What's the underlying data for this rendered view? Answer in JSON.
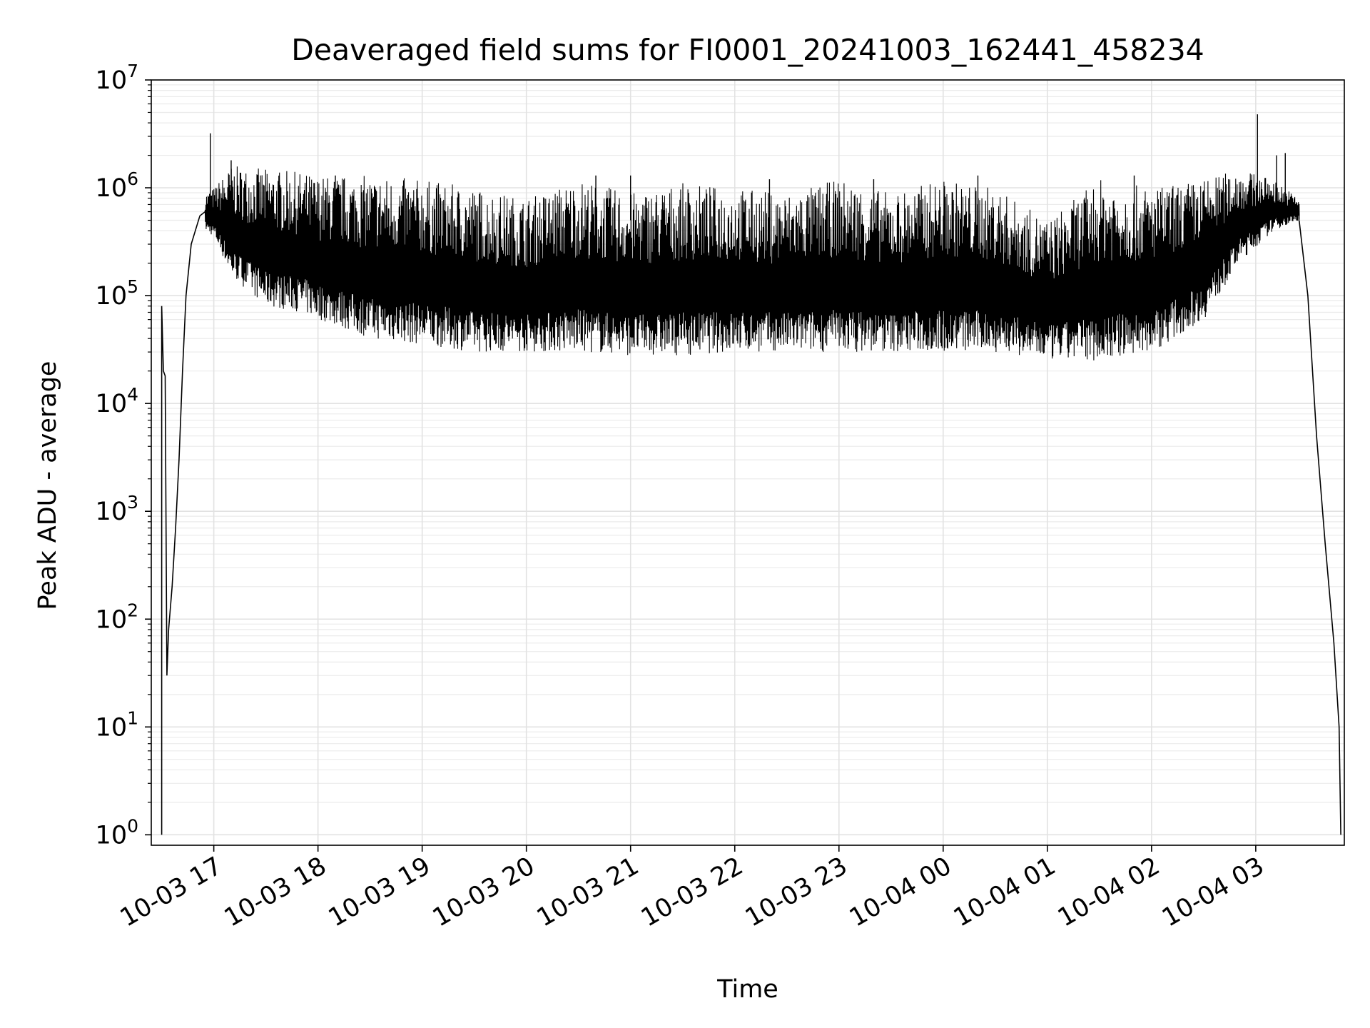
{
  "chart_data": {
    "type": "line",
    "title": "Deaveraged field sums for FI0001_20241003_162441_458234",
    "xlabel": "Time",
    "ylabel": "Peak ADU - average",
    "yscale": "log",
    "ylim": [
      0.8,
      10000000
    ],
    "xlim": [
      "2024-10-03 16:24",
      "2024-10-04 03:51"
    ],
    "grid": true,
    "line_color": "#000000",
    "x_ticks": [
      {
        "label": "10-03 17",
        "time": "2024-10-03 17:00"
      },
      {
        "label": "10-03 18",
        "time": "2024-10-03 18:00"
      },
      {
        "label": "10-03 19",
        "time": "2024-10-03 19:00"
      },
      {
        "label": "10-03 20",
        "time": "2024-10-03 20:00"
      },
      {
        "label": "10-03 21",
        "time": "2024-10-03 21:00"
      },
      {
        "label": "10-03 22",
        "time": "2024-10-03 22:00"
      },
      {
        "label": "10-03 23",
        "time": "2024-10-03 23:00"
      },
      {
        "label": "10-04 00",
        "time": "2024-10-04 00:00"
      },
      {
        "label": "10-04 01",
        "time": "2024-10-04 01:00"
      },
      {
        "label": "10-04 02",
        "time": "2024-10-04 02:00"
      },
      {
        "label": "10-04 03",
        "time": "2024-10-04 03:00"
      }
    ],
    "y_ticks": [
      {
        "base": "10",
        "exp": "0",
        "value": 1
      },
      {
        "base": "10",
        "exp": "1",
        "value": 10
      },
      {
        "base": "10",
        "exp": "2",
        "value": 100
      },
      {
        "base": "10",
        "exp": "3",
        "value": 1000
      },
      {
        "base": "10",
        "exp": "4",
        "value": 10000
      },
      {
        "base": "10",
        "exp": "5",
        "value": 100000
      },
      {
        "base": "10",
        "exp": "6",
        "value": 1000000
      },
      {
        "base": "10",
        "exp": "7",
        "value": 10000000
      }
    ],
    "series": [
      {
        "points": [
          [
            "2024-10-03 16:30",
            1
          ],
          [
            "2024-10-03 16:30",
            80000
          ],
          [
            "2024-10-03 16:31",
            20000
          ],
          [
            "2024-10-03 16:32",
            18000
          ],
          [
            "2024-10-03 16:33",
            30
          ],
          [
            "2024-10-03 16:34",
            80
          ],
          [
            "2024-10-03 16:36",
            200
          ],
          [
            "2024-10-03 16:38",
            700
          ],
          [
            "2024-10-03 16:40",
            3000
          ],
          [
            "2024-10-03 16:42",
            20000
          ],
          [
            "2024-10-03 16:44",
            100000
          ],
          [
            "2024-10-03 16:47",
            300000
          ],
          [
            "2024-10-03 16:52",
            550000
          ],
          [
            "2024-10-03 16:55",
            600000
          ],
          [
            "2024-10-03 16:59",
            700000
          ],
          [
            "2024-10-03 17:05",
            800000
          ],
          [
            "2024-10-03 17:10",
            900000
          ],
          [
            "2024-10-03 17:20",
            900000
          ],
          [
            "2024-10-03 17:30",
            800000
          ],
          [
            "2024-10-03 17:40",
            700000
          ],
          [
            "2024-10-03 17:50",
            600000
          ],
          [
            "2024-10-03 18:00",
            600000
          ],
          [
            "2024-10-03 18:30",
            450000
          ],
          [
            "2024-10-03 19:00",
            350000
          ],
          [
            "2024-10-03 20:00",
            250000
          ],
          [
            "2024-10-03 21:00",
            250000
          ],
          [
            "2024-10-03 22:00",
            250000
          ],
          [
            "2024-10-03 23:00",
            250000
          ],
          [
            "2024-10-04 00:00",
            250000
          ],
          [
            "2024-10-04 00:30",
            300000
          ],
          [
            "2024-10-04 01:00",
            180000
          ],
          [
            "2024-10-04 01:30",
            250000
          ],
          [
            "2024-10-04 02:00",
            300000
          ],
          [
            "2024-10-04 02:30",
            500000
          ],
          [
            "2024-10-04 02:55",
            700000
          ],
          [
            "2024-10-04 03:00",
            900000
          ],
          [
            "2024-10-04 03:15",
            700000
          ],
          [
            "2024-10-04 03:25",
            500000
          ],
          [
            "2024-10-04 03:30",
            100000
          ],
          [
            "2024-10-04 03:35",
            5000
          ],
          [
            "2024-10-04 03:40",
            500
          ],
          [
            "2024-10-04 03:45",
            60
          ],
          [
            "2024-10-04 03:48",
            10
          ],
          [
            "2024-10-04 03:49",
            1
          ]
        ],
        "band": {
          "description_free": true,
          "points": [
            [
              "2024-10-03 16:55",
              400000,
              900000
            ],
            [
              "2024-10-03 17:00",
              350000,
              1000000
            ],
            [
              "2024-10-03 17:10",
              150000,
              1600000
            ],
            [
              "2024-10-03 17:30",
              80000,
              1500000
            ],
            [
              "2024-10-03 17:50",
              70000,
              1400000
            ],
            [
              "2024-10-03 18:00",
              60000,
              1300000
            ],
            [
              "2024-10-03 18:30",
              40000,
              1300000
            ],
            [
              "2024-10-03 19:00",
              35000,
              1200000
            ],
            [
              "2024-10-03 19:30",
              30000,
              1000000
            ],
            [
              "2024-10-03 20:00",
              30000,
              800000
            ],
            [
              "2024-10-03 20:30",
              30000,
              1200000
            ],
            [
              "2024-10-03 21:00",
              28000,
              900000
            ],
            [
              "2024-10-03 21:30",
              28000,
              1100000
            ],
            [
              "2024-10-03 22:00",
              30000,
              1000000
            ],
            [
              "2024-10-03 22:30",
              30000,
              900000
            ],
            [
              "2024-10-03 23:00",
              30000,
              1200000
            ],
            [
              "2024-10-03 23:30",
              30000,
              900000
            ],
            [
              "2024-10-04 00:00",
              30000,
              1200000
            ],
            [
              "2024-10-04 00:30",
              30000,
              1000000
            ],
            [
              "2024-10-04 01:00",
              25000,
              500000
            ],
            [
              "2024-10-04 01:30",
              25000,
              1200000
            ],
            [
              "2024-10-04 02:00",
              30000,
              1000000
            ],
            [
              "2024-10-04 02:30",
              60000,
              1200000
            ],
            [
              "2024-10-04 02:50",
              200000,
              1500000
            ],
            [
              "2024-10-04 03:10",
              400000,
              1200000
            ],
            [
              "2024-10-04 03:25",
              500000,
              800000
            ]
          ]
        },
        "spikes": [
          [
            "2024-10-03 16:58",
            3200000
          ],
          [
            "2024-10-03 17:10",
            1800000
          ],
          [
            "2024-10-03 18:10",
            1300000
          ],
          [
            "2024-10-03 20:40",
            1300000
          ],
          [
            "2024-10-03 21:00",
            1300000
          ],
          [
            "2024-10-03 22:20",
            1200000
          ],
          [
            "2024-10-03 23:20",
            1200000
          ],
          [
            "2024-10-04 00:20",
            1300000
          ],
          [
            "2024-10-04 01:50",
            1300000
          ],
          [
            "2024-10-04 03:01",
            4800000
          ],
          [
            "2024-10-04 03:12",
            2000000
          ],
          [
            "2024-10-04 03:17",
            2100000
          ]
        ]
      }
    ]
  }
}
